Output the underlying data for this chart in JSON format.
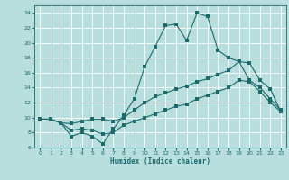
{
  "xlabel": "Humidex (Indice chaleur)",
  "xlim": [
    -0.5,
    23.5
  ],
  "ylim": [
    6,
    25
  ],
  "yticks": [
    6,
    8,
    10,
    12,
    14,
    16,
    18,
    20,
    22,
    24
  ],
  "xticks": [
    0,
    1,
    2,
    3,
    4,
    5,
    6,
    7,
    8,
    9,
    10,
    11,
    12,
    13,
    14,
    15,
    16,
    17,
    18,
    19,
    20,
    21,
    22,
    23
  ],
  "bg_color": "#b8dede",
  "line_color": "#1a6b6b",
  "grid_color": "#d8eeee",
  "line1_x": [
    0,
    1,
    2,
    3,
    4,
    5,
    6,
    7,
    8,
    9,
    10,
    11,
    12,
    13,
    14,
    15,
    16,
    17,
    18,
    19,
    20,
    21,
    22,
    23
  ],
  "line1_y": [
    9.8,
    9.8,
    9.3,
    7.5,
    8.0,
    7.5,
    6.5,
    8.5,
    10.3,
    12.5,
    16.8,
    19.5,
    22.3,
    22.5,
    20.3,
    24.0,
    23.5,
    19.0,
    18.0,
    17.5,
    15.0,
    14.0,
    12.5,
    11.0
  ],
  "line2_x": [
    0,
    1,
    2,
    3,
    4,
    5,
    6,
    7,
    8,
    9,
    10,
    11,
    12,
    13,
    14,
    15,
    16,
    17,
    18,
    19,
    20,
    21,
    22,
    23
  ],
  "line2_y": [
    9.8,
    9.8,
    9.3,
    9.2,
    9.5,
    9.8,
    9.8,
    9.5,
    10.0,
    11.0,
    12.0,
    12.8,
    13.3,
    13.8,
    14.2,
    14.8,
    15.2,
    15.8,
    16.3,
    17.5,
    17.3,
    15.0,
    13.8,
    10.8
  ],
  "line3_x": [
    0,
    1,
    2,
    3,
    4,
    5,
    6,
    7,
    8,
    9,
    10,
    11,
    12,
    13,
    14,
    15,
    16,
    17,
    18,
    19,
    20,
    21,
    22,
    23
  ],
  "line3_y": [
    9.8,
    9.8,
    9.3,
    8.3,
    8.5,
    8.3,
    7.8,
    8.0,
    9.0,
    9.5,
    10.0,
    10.5,
    11.0,
    11.5,
    11.8,
    12.5,
    13.0,
    13.5,
    14.0,
    15.0,
    14.8,
    13.5,
    12.0,
    10.8
  ],
  "marker_size": 2.5,
  "linewidth": 0.8
}
